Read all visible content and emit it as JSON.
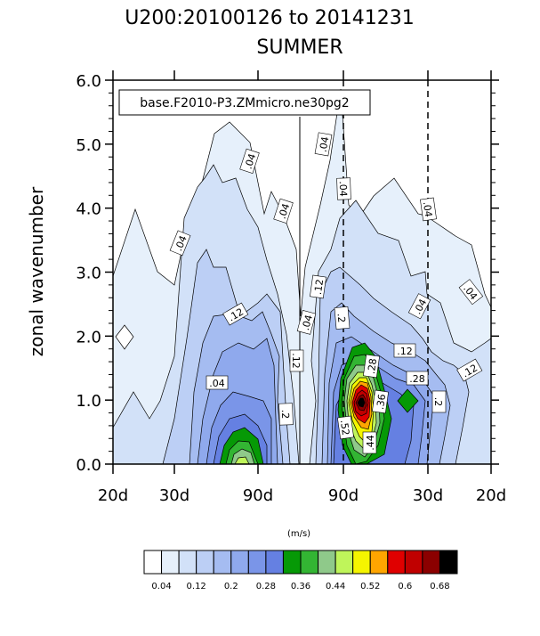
{
  "chart_data": {
    "type": "filled-contour",
    "title": "U200:20100126 to 20141231",
    "subtitle": "SUMMER",
    "case_label": "base.F2010-P3.ZMmicro.ne30pg2",
    "ylabel": "zonal wavenumber",
    "xlabel": "",
    "ylim": [
      0.0,
      6.0
    ],
    "y_ticks": [
      "0.0",
      "1.0",
      "2.0",
      "3.0",
      "4.0",
      "5.0",
      "6.0"
    ],
    "x_tick_labels": [
      "20d",
      "30d",
      "90d",
      "90d",
      "30d",
      "20d"
    ],
    "colorbar": {
      "units": "(m/s)",
      "levels": [
        "0.04",
        "0.08",
        "0.12",
        "0.16",
        "0.2",
        "0.24",
        "0.28",
        "0.32",
        "0.36",
        "0.4",
        "0.44",
        "0.48",
        "0.52",
        "0.56",
        "0.6",
        "0.64",
        "0.68"
      ],
      "tick_labels": [
        "0.04",
        "0.12",
        "0.2",
        "0.28",
        "0.36",
        "0.44",
        "0.52",
        "0.6",
        "0.68"
      ],
      "colors": [
        "#ffffff",
        "#e6f0fb",
        "#d2e1f8",
        "#bccff5",
        "#a5bcf1",
        "#8fa9ed",
        "#7a95e8",
        "#6580e2",
        "#069906",
        "#33b533",
        "#8fc98a",
        "#bff55a",
        "#f5f500",
        "#ffa500",
        "#e00000",
        "#c00000",
        "#8b0000",
        "#000000"
      ]
    },
    "contour_labels": [
      ".04",
      ".04",
      ".04",
      ".04",
      ".04",
      ".04",
      ".04",
      ".04",
      ".04",
      ".04",
      ".12",
      ".12",
      ".12",
      ".12",
      ".12",
      ".2",
      ".2",
      ".2",
      ".28",
      ".28",
      ".36",
      ".44",
      ".52"
    ]
  }
}
